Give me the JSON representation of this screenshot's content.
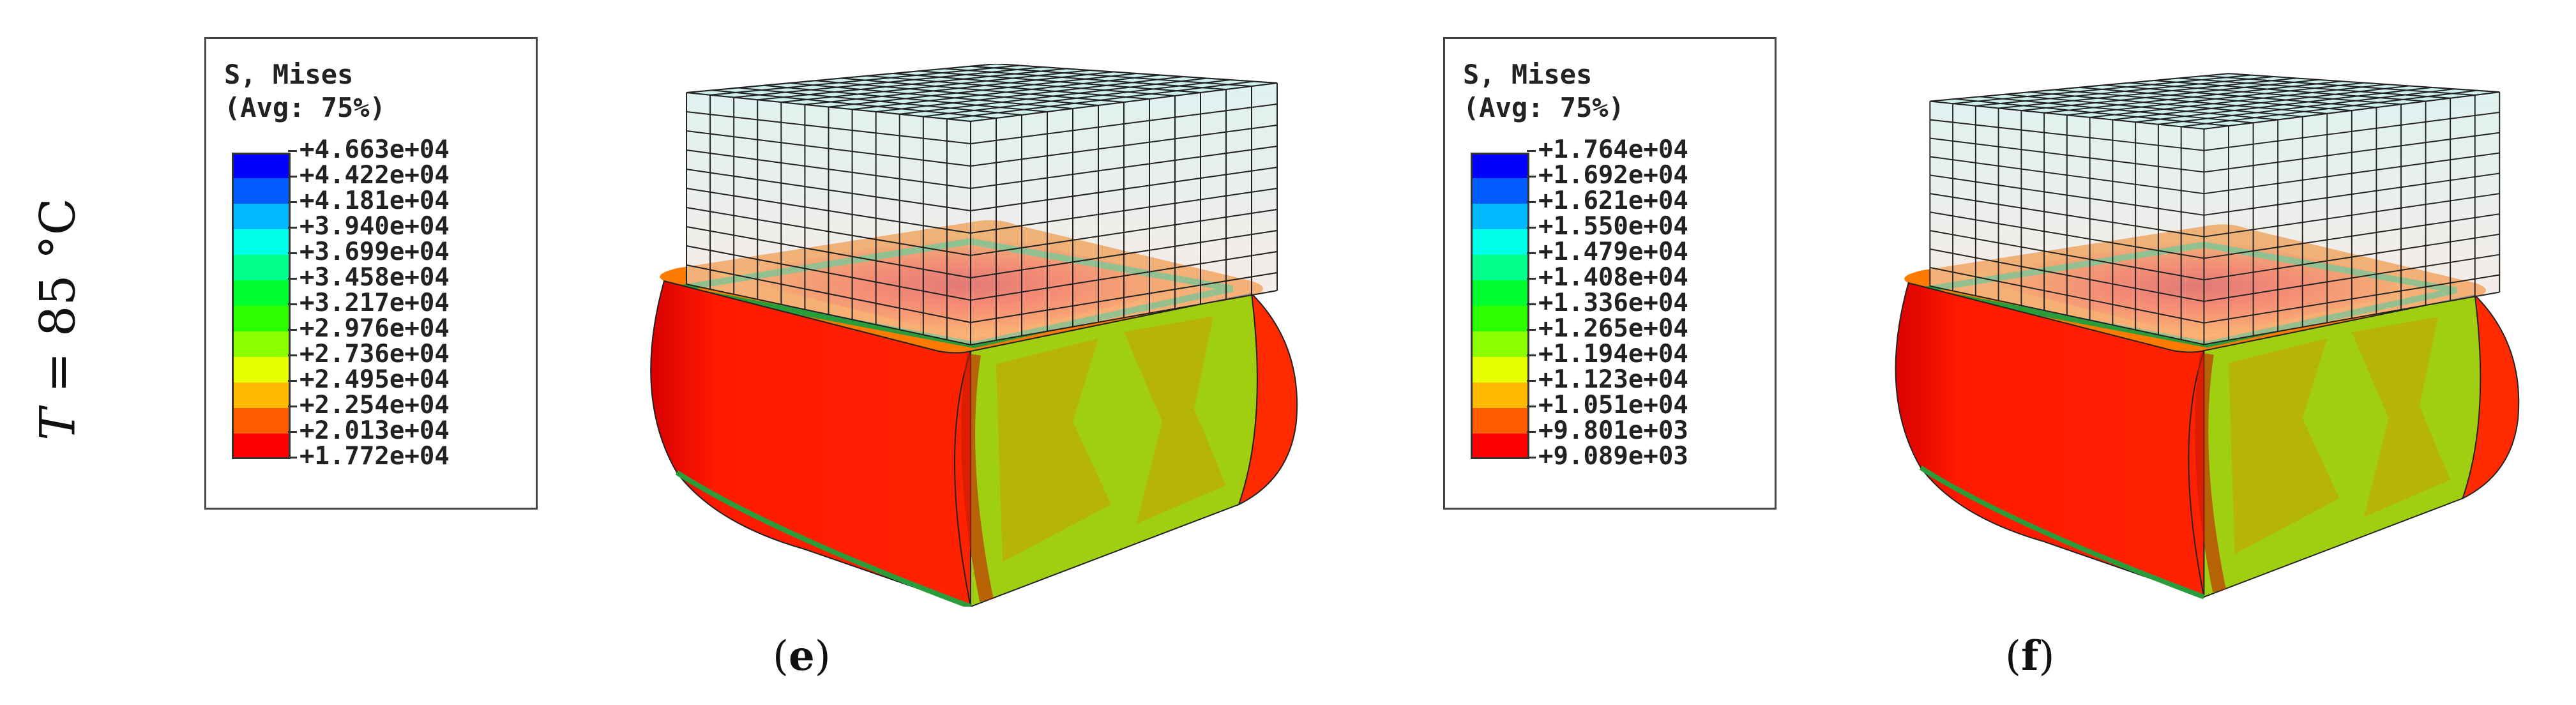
{
  "row_label": {
    "variable": "T",
    "rest": " = 85 °C"
  },
  "panels": [
    {
      "caption_letter": "e",
      "legend": {
        "title_line1": "S, Mises",
        "title_line2": "(Avg: 75%)",
        "values": [
          "+4.663e+04",
          "+4.422e+04",
          "+4.181e+04",
          "+3.940e+04",
          "+3.699e+04",
          "+3.458e+04",
          "+3.217e+04",
          "+2.976e+04",
          "+2.736e+04",
          "+2.495e+04",
          "+2.254e+04",
          "+2.013e+04",
          "+1.772e+04"
        ]
      }
    },
    {
      "caption_letter": "f",
      "legend": {
        "title_line1": "S, Mises",
        "title_line2": "(Avg: 75%)",
        "values": [
          "+1.764e+04",
          "+1.692e+04",
          "+1.621e+04",
          "+1.550e+04",
          "+1.479e+04",
          "+1.408e+04",
          "+1.336e+04",
          "+1.265e+04",
          "+1.194e+04",
          "+1.123e+04",
          "+1.051e+04",
          "+9.801e+03",
          "+9.089e+03"
        ]
      }
    }
  ],
  "colormap": [
    "#0000ff",
    "#005cff",
    "#00b9ff",
    "#00ffe8",
    "#00ff8b",
    "#00ff2e",
    "#2eff00",
    "#8bff00",
    "#e8ff00",
    "#ffb900",
    "#ff5c00",
    "#ff0000"
  ]
}
